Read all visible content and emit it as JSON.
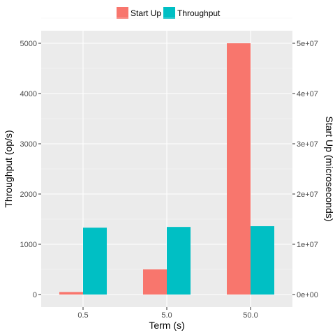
{
  "chart_data": {
    "type": "bar",
    "categories": [
      "0.5",
      "5.0",
      "50.0"
    ],
    "xlabel": "Term (s)",
    "series": [
      {
        "name": "Start Up",
        "axis": "right",
        "values": [
          500000,
          5000000,
          50000000
        ],
        "color": "#F8766D"
      },
      {
        "name": "Throughput",
        "axis": "left",
        "values": [
          1330,
          1345,
          1360
        ],
        "color": "#00BFC4"
      }
    ],
    "left_axis": {
      "label": "Throughput (op/s)",
      "ticks": [
        0,
        1000,
        2000,
        3000,
        4000,
        5000
      ],
      "tick_labels": [
        "0",
        "1000",
        "2000",
        "3000",
        "4000",
        "5000"
      ],
      "range": [
        -250,
        5250
      ]
    },
    "right_axis": {
      "label": "Start Up (microseconds)",
      "ticks": [
        0,
        10000000,
        20000000,
        30000000,
        40000000,
        50000000
      ],
      "tick_labels": [
        "0e+00",
        "1e+07",
        "2e+07",
        "3e+07",
        "4e+07",
        "5e+07"
      ],
      "range": [
        -2500000,
        52500000
      ]
    },
    "legend_position": "top",
    "panel_background": "#EBEBEB",
    "grid": true
  }
}
